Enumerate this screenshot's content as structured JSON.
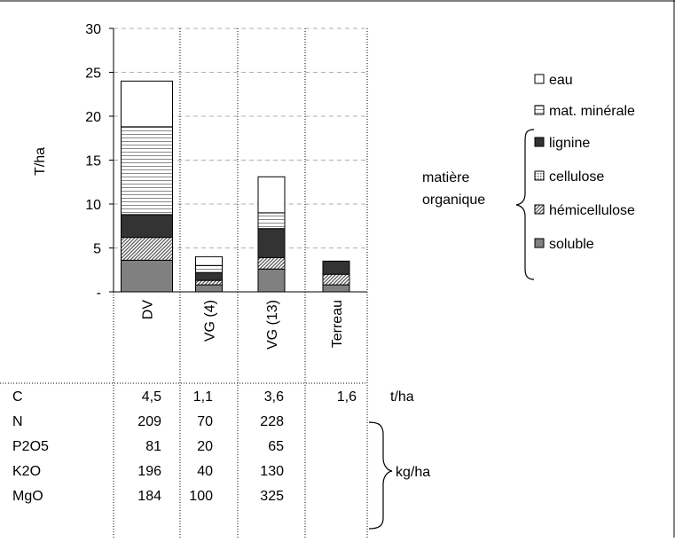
{
  "chart_data": {
    "type": "bar",
    "stacked": true,
    "ylabel": "T/ha",
    "ylim": [
      0,
      30
    ],
    "yticks": [
      {
        "value": 0,
        "label": "-"
      },
      {
        "value": 5,
        "label": "5"
      },
      {
        "value": 10,
        "label": "10"
      },
      {
        "value": 15,
        "label": "15"
      },
      {
        "value": 20,
        "label": "20"
      },
      {
        "value": 25,
        "label": "25"
      },
      {
        "value": 30,
        "label": "30"
      }
    ],
    "grid": "horizontal dashed",
    "categories": [
      "DV",
      "VG (4)",
      "VG (13)",
      "Terreau"
    ],
    "series": [
      {
        "name": "soluble",
        "pattern": "gray-solid",
        "values": [
          3.6,
          0.8,
          2.6,
          0.8
        ]
      },
      {
        "name": "hémicellulose",
        "pattern": "diagonal-hatch",
        "values": [
          2.6,
          0.5,
          1.3,
          1.2
        ]
      },
      {
        "name": "cellulose",
        "pattern": "dotted",
        "values": [
          0.0,
          0.0,
          0.0,
          0.0
        ]
      },
      {
        "name": "lignine",
        "pattern": "dark-solid",
        "values": [
          2.6,
          0.9,
          3.3,
          1.5
        ]
      },
      {
        "name": "mat. minérale",
        "pattern": "horizontal-lines",
        "values": [
          10.0,
          0.8,
          1.8,
          0.0
        ]
      },
      {
        "name": "eau",
        "pattern": "white",
        "values": [
          5.2,
          1.0,
          4.1,
          0.0
        ]
      }
    ],
    "legend": {
      "placement": "right",
      "items": [
        "eau",
        "mat. minérale",
        "lignine",
        "cellulose",
        "hémicellulose",
        "soluble"
      ],
      "group_label": [
        "matière",
        "organique"
      ]
    },
    "table": {
      "rows": [
        {
          "label": "C",
          "values": [
            "4,5",
            "1,1",
            "3,6",
            "1,6"
          ],
          "unit": "t/ha"
        },
        {
          "label": "N",
          "values": [
            "209",
            "70",
            "228",
            ""
          ]
        },
        {
          "label": "P2O5",
          "values": [
            "81",
            "20",
            "65",
            ""
          ]
        },
        {
          "label": "K2O",
          "values": [
            "196",
            "40",
            "130",
            ""
          ]
        },
        {
          "label": "MgO",
          "values": [
            "184",
            "100",
            "325",
            ""
          ]
        }
      ],
      "group_unit": "kg/ha"
    },
    "colors": {
      "soluble": "#808080",
      "lignine": "#333333",
      "hatch": "#555555",
      "grid": "#b0b0b0"
    }
  }
}
